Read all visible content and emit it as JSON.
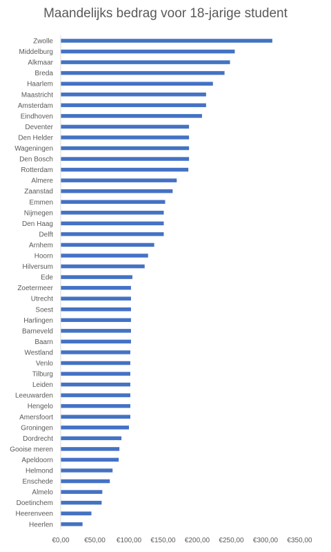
{
  "chart_data": {
    "type": "bar",
    "orientation": "horizontal",
    "title": "Maandelijks bedrag voor 18-jarige student",
    "xlabel": "",
    "ylabel": "",
    "xlim": [
      0,
      350
    ],
    "x_ticks": [
      0,
      50,
      100,
      150,
      200,
      250,
      300,
      350
    ],
    "x_tick_labels": [
      "€0,00",
      "€50,00",
      "€100,00",
      "€150,00",
      "€200,00",
      "€250,00",
      "€300,00",
      "€350,00"
    ],
    "grid": false,
    "legend": "none",
    "bar_color": "#4472C4",
    "categories": [
      "Zwolle",
      "Middelburg",
      "Alkmaar",
      "Breda",
      "Haarlem",
      "Maastricht",
      "Amsterdam",
      "Eindhoven",
      "Deventer",
      "Den Helder",
      "Wageningen",
      "Den Bosch",
      "Rotterdam",
      "Almere",
      "Zaanstad",
      "Emmen",
      "Nijmegen",
      "Den Haag",
      "Delft",
      "Arnhem",
      "Hoorn",
      "Hilversum",
      "Ede",
      "Zoetermeer",
      "Utrecht",
      "Soest",
      "Harlingen",
      "Barneveld",
      "Baarn",
      "Westland",
      "Venlo",
      "Tilburg",
      "Leiden",
      "Leeuwarden",
      "Hengelo",
      "Amersfoort",
      "Groningen",
      "Dordrecht",
      "Gooise meren",
      "Apeldoorn",
      "Helmond",
      "Enschede",
      "Almelo",
      "Doetinchem",
      "Heerenveen",
      "Heerlen"
    ],
    "values": [
      310,
      255,
      248,
      240,
      223,
      213,
      213,
      207,
      188,
      188,
      188,
      188,
      187,
      170,
      164,
      153,
      151,
      151,
      151,
      137,
      128,
      123,
      105,
      103,
      103,
      103,
      103,
      103,
      103,
      102,
      102,
      102,
      102,
      102,
      102,
      102,
      100,
      89,
      86,
      85,
      76,
      72,
      61,
      60,
      45,
      32
    ]
  }
}
